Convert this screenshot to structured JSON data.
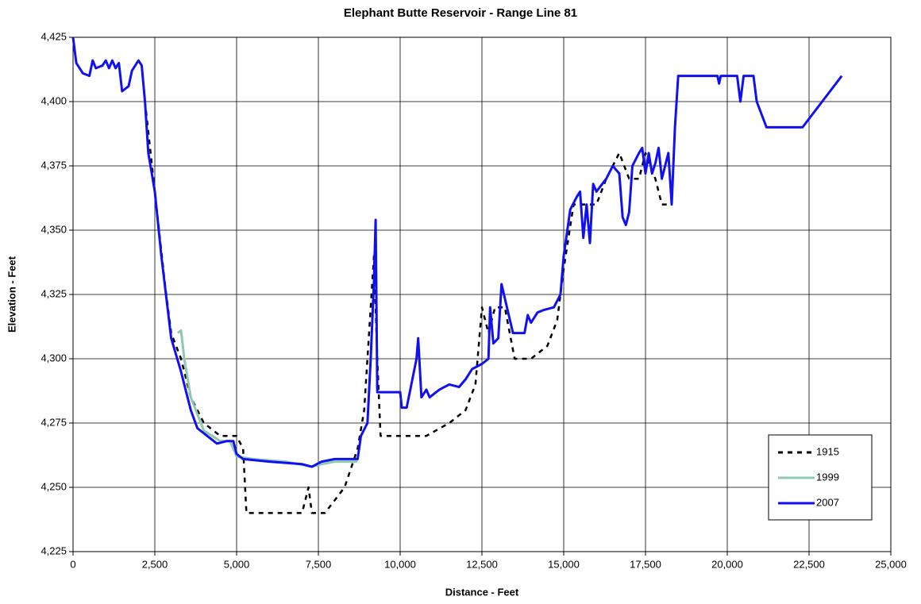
{
  "chart_data": {
    "type": "line",
    "title": "Elephant Butte Reservoir - Range Line 81",
    "x_label": "Distance - Feet",
    "y_label": "Elevation - Feet",
    "xlim": [
      0,
      25000
    ],
    "ylim": [
      4225,
      4425
    ],
    "xticks": [
      0,
      {
        "value": 2500,
        "label": "2,500"
      },
      {
        "value": 5000,
        "label": "5,000"
      },
      {
        "value": 7500,
        "label": "7,500"
      },
      {
        "value": 10000,
        "label": "10,000"
      },
      {
        "value": 12500,
        "label": "12,500"
      },
      {
        "value": 15000,
        "label": "15,000"
      },
      {
        "value": 17500,
        "label": "17,500"
      },
      {
        "value": 20000,
        "label": "20,000"
      },
      {
        "value": 22500,
        "label": "22,500"
      },
      {
        "value": 25000,
        "label": "25,000"
      }
    ],
    "yticks": [
      {
        "value": 4225,
        "label": "4,225"
      },
      {
        "value": 4250,
        "label": "4,250"
      },
      {
        "value": 4275,
        "label": "4,275"
      },
      {
        "value": 4300,
        "label": "4,300"
      },
      {
        "value": 4325,
        "label": "4,325"
      },
      {
        "value": 4350,
        "label": "4,350"
      },
      {
        "value": 4375,
        "label": "4,375"
      },
      {
        "value": 4400,
        "label": "4,400"
      },
      {
        "value": 4425,
        "label": "4,425"
      }
    ],
    "grid": true,
    "legend": "lower right",
    "series": [
      {
        "name": "1915",
        "color": "#000000",
        "dash": true,
        "x": [
          2200,
          2500,
          2800,
          3000,
          3300,
          3600,
          4000,
          4500,
          5000,
          5200,
          5300,
          6000,
          7000,
          7200,
          7300,
          7700,
          8300,
          8700,
          8900,
          9000,
          9200,
          9300,
          9400,
          10000,
          10800,
          11500,
          12000,
          12300,
          12500,
          12700,
          12900,
          13200,
          13500,
          14000,
          14500,
          14800,
          15000,
          15300,
          15700,
          16000,
          16300,
          16700,
          17000,
          17300,
          17500,
          17800,
          18000,
          18300
        ],
        "values": [
          4400,
          4365,
          4330,
          4310,
          4300,
          4285,
          4275,
          4270,
          4270,
          4265,
          4240,
          4240,
          4240,
          4250,
          4240,
          4240,
          4250,
          4265,
          4280,
          4300,
          4340,
          4300,
          4270,
          4270,
          4270,
          4275,
          4280,
          4290,
          4320,
          4310,
          4320,
          4320,
          4300,
          4300,
          4305,
          4315,
          4335,
          4360,
          4360,
          4360,
          4370,
          4380,
          4370,
          4370,
          4380,
          4370,
          4360,
          4360
        ]
      },
      {
        "name": "1999",
        "color": "#8fc9b0",
        "dash": false,
        "x": [
          3200,
          3300,
          3400,
          3600,
          4000,
          4500,
          4800,
          5000,
          5500,
          6500,
          7300,
          7600,
          8000,
          8700
        ],
        "values": [
          4310,
          4311,
          4300,
          4285,
          4272,
          4268,
          4268,
          4262,
          4261,
          4260,
          4258,
          4259,
          4260,
          4260
        ]
      },
      {
        "name": "2007",
        "color": "#1010f0",
        "dash": false,
        "x": [
          0,
          100,
          300,
          500,
          600,
          700,
          900,
          1000,
          1100,
          1200,
          1300,
          1400,
          1500,
          1700,
          1800,
          2000,
          2100,
          2200,
          2300,
          2500,
          2700,
          3000,
          3300,
          3600,
          3800,
          4100,
          4400,
          4700,
          4900,
          5000,
          5200,
          6000,
          7000,
          7300,
          7600,
          8000,
          8700,
          8800,
          9000,
          9100,
          9200,
          9250,
          9300,
          10000,
          10050,
          10200,
          10500,
          10550,
          10650,
          10800,
          10900,
          11200,
          11500,
          11800,
          12000,
          12200,
          12500,
          12700,
          12750,
          12850,
          13000,
          13100,
          13300,
          13450,
          13800,
          13900,
          14000,
          14200,
          14400,
          14700,
          14900,
          15000,
          15200,
          15400,
          15500,
          15600,
          15700,
          15800,
          15900,
          16000,
          16300,
          16500,
          16700,
          16800,
          16900,
          17000,
          17100,
          17300,
          17400,
          17500,
          17600,
          17700,
          17800,
          17900,
          18000,
          18200,
          18300,
          18400,
          18500,
          19700,
          19750,
          19800,
          20300,
          20400,
          20500,
          20800,
          20900,
          21200,
          22300,
          23500
        ],
        "values": [
          4425,
          4415,
          4411,
          4410,
          4416,
          4413,
          4414,
          4416,
          4413,
          4416,
          4413,
          4415,
          4404,
          4406,
          4412,
          4416,
          4414,
          4400,
          4380,
          4365,
          4340,
          4308,
          4295,
          4280,
          4273,
          4270,
          4267,
          4268,
          4268,
          4263,
          4261,
          4260,
          4259,
          4258,
          4260,
          4261,
          4261,
          4270,
          4275,
          4300,
          4330,
          4354,
          4287,
          4287,
          4281,
          4281,
          4300,
          4308,
          4285,
          4288,
          4285,
          4288,
          4290,
          4289,
          4292,
          4296,
          4298,
          4300,
          4320,
          4306,
          4308,
          4329,
          4318,
          4310,
          4310,
          4317,
          4314,
          4318,
          4319,
          4320,
          4325,
          4340,
          4358,
          4363,
          4365,
          4347,
          4360,
          4345,
          4368,
          4365,
          4370,
          4375,
          4372,
          4355,
          4352,
          4357,
          4375,
          4380,
          4382,
          4372,
          4380,
          4372,
          4376,
          4382,
          4370,
          4380,
          4360,
          4390,
          4410,
          4410,
          4407,
          4410,
          4410,
          4400,
          4410,
          4410,
          4400,
          4390,
          4390,
          4410
        ]
      }
    ]
  }
}
